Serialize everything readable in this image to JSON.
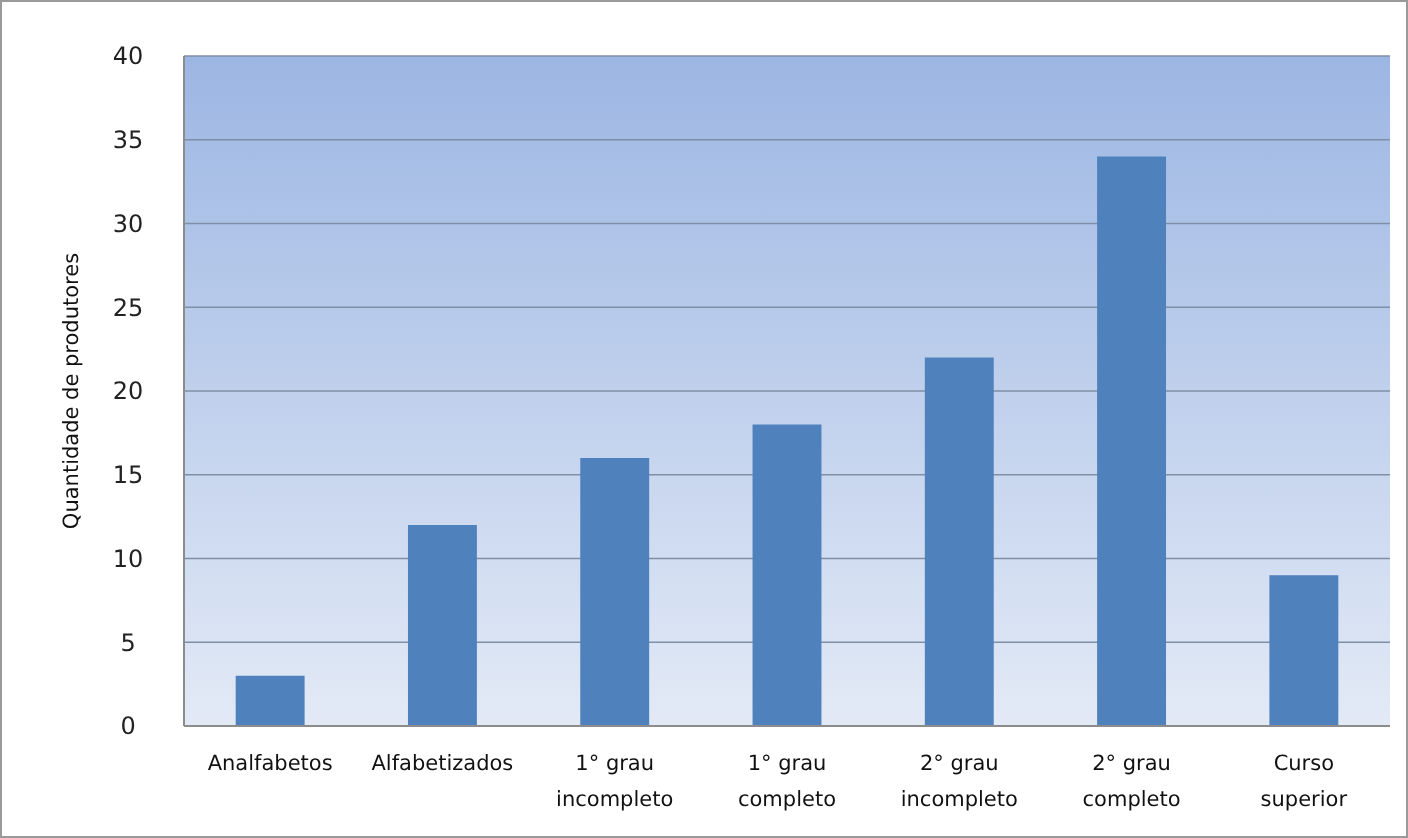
{
  "chart_data": {
    "type": "bar",
    "ylabel": "Quantidade de produtores",
    "categories": [
      "Analfabetos",
      "Alfabetizados",
      "1° grau\nincompleto",
      "1° grau\ncompleto",
      "2° grau\nincompleto",
      "2° grau\ncompleto",
      "Curso\nsuperior"
    ],
    "values": [
      3,
      12,
      16,
      18,
      22,
      34,
      9
    ],
    "color": "#4f81bd",
    "ylim": [
      0,
      40
    ],
    "yticks": [
      0,
      5,
      10,
      15,
      20,
      25,
      30,
      35,
      40
    ],
    "grid": "y"
  }
}
